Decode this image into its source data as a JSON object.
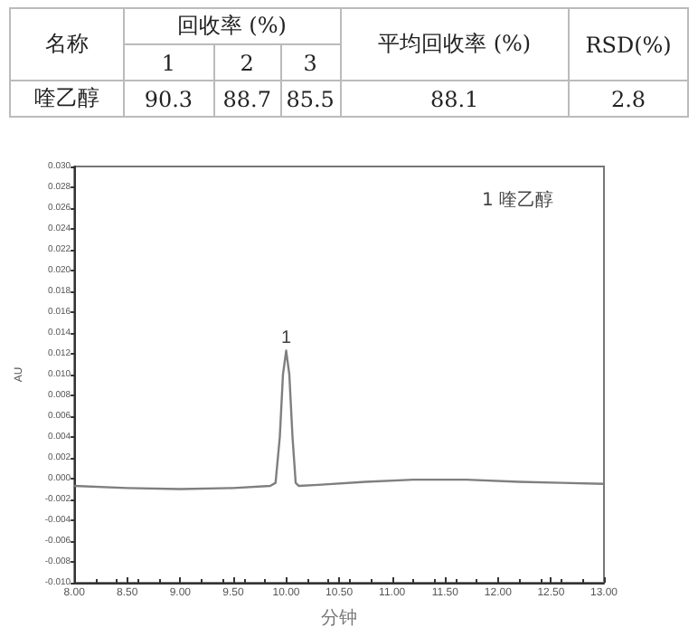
{
  "chart_data": [
    {
      "type": "other",
      "annotations": [
        "名称",
        "回收率 (%)",
        "平均回收率 (%)",
        "RSD(%)",
        "1",
        "2",
        "3",
        "喹乙醇",
        "90.3",
        "88.7",
        "85.5",
        "88.1",
        "2.8"
      ]
    },
    {
      "type": "line",
      "xlabel": "分钟",
      "ylabel": "AU",
      "marker": "none",
      "grid": false,
      "xlim": [
        8,
        13
      ],
      "xticks": [
        {
          "value": 8,
          "label": "8.00"
        },
        {
          "value": 8.5,
          "label": "8.50"
        },
        {
          "value": 9,
          "label": "9.00"
        },
        {
          "value": 9.5,
          "label": "9.50"
        },
        {
          "value": 10,
          "label": "10.00"
        },
        {
          "value": 10.5,
          "label": "10.50"
        },
        {
          "value": 11,
          "label": "11.00"
        },
        {
          "value": 11.5,
          "label": "11.50"
        },
        {
          "value": 12,
          "label": "12.00"
        },
        {
          "value": 12.5,
          "label": "12.50"
        },
        {
          "value": 13,
          "label": "13.00"
        }
      ],
      "ylim": [
        -0.01,
        0.03
      ],
      "yticks": [
        {
          "value": -0.01,
          "label": "-0.010"
        },
        {
          "value": -0.008,
          "label": "-0.008"
        },
        {
          "value": -0.006,
          "label": "-0.006"
        },
        {
          "value": -0.004,
          "label": "-0.004"
        },
        {
          "value": -0.002,
          "label": "-0.002"
        },
        {
          "value": 0,
          "label": "0.000"
        },
        {
          "value": 0.002,
          "label": "0.002"
        },
        {
          "value": 0.004,
          "label": "0.004"
        },
        {
          "value": 0.006,
          "label": "0.006"
        },
        {
          "value": 0.008,
          "label": "0.008"
        },
        {
          "value": 0.01,
          "label": "0.010"
        },
        {
          "value": 0.012,
          "label": "0.012"
        },
        {
          "value": 0.014,
          "label": "0.014"
        },
        {
          "value": 0.016,
          "label": "0.016"
        },
        {
          "value": 0.018,
          "label": "0.018"
        },
        {
          "value": 0.02,
          "label": "0.020"
        },
        {
          "value": 0.022,
          "label": "0.022"
        },
        {
          "value": 0.024,
          "label": "0.024"
        },
        {
          "value": 0.026,
          "label": "0.026"
        },
        {
          "value": 0.028,
          "label": "0.028"
        },
        {
          "value": 0.03,
          "label": "0.030"
        }
      ],
      "series": [
        {
          "color": "#7f7f7f",
          "x": [
            8,
            8.5,
            9,
            9.5,
            9.85,
            9.9,
            9.94,
            9.97,
            10,
            10.03,
            10.06,
            10.09,
            10.12,
            10.3,
            10.75,
            11.2,
            11.7,
            12.2,
            12.6,
            13
          ],
          "values": [
            -0.0007,
            -0.0009,
            -0.001,
            -0.0009,
            -0.0007,
            -0.0004,
            0.004,
            0.01,
            0.0123,
            0.01,
            0.004,
            -0.0004,
            -0.0007,
            -0.0006,
            -0.0003,
            -0.0001,
            -0.0001,
            -0.0003,
            -0.0004,
            -0.0005
          ]
        }
      ],
      "annotations": [
        {
          "text": "1",
          "x": 10,
          "y": 0.0123
        },
        "1 喹乙醇"
      ]
    }
  ]
}
